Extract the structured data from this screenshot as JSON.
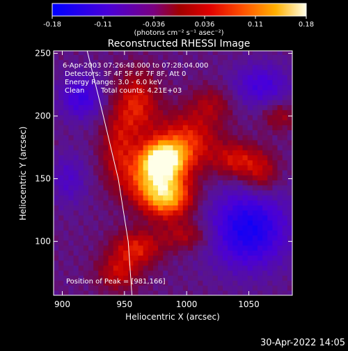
{
  "chart_data": {
    "type": "heatmap",
    "title": "Reconstructed RHESSI Image",
    "xlabel": "Heliocentric X (arcsec)",
    "ylabel": "Heliocentric Y (arcsec)",
    "xlim": [
      893,
      1085
    ],
    "ylim": [
      57,
      252
    ],
    "x_ticks": [
      900,
      950,
      1000,
      1050
    ],
    "y_ticks": [
      100,
      150,
      200,
      250
    ],
    "colorbar": {
      "range": [
        -0.18,
        0.18
      ],
      "ticks": [
        "-0.18",
        "-0.11",
        "-0.036",
        "0.036",
        "0.11",
        "0.18"
      ],
      "units_label": "(photons cm⁻² s⁻¹ asec⁻²)"
    },
    "annotations": {
      "time": "6-Apr-2003 07:26:48.000 to 07:28:04.000",
      "detectors": "Detectors: 3F 4F 5F 6F 7F 8F, Att 0",
      "energy": "Energy Range: 3.0 - 6.0 keV",
      "method": "Clean",
      "counts": "Total counts: 4.21E+03",
      "peak": "Position of Peak = [981,166]"
    },
    "peak": {
      "x": 981,
      "y": 166
    },
    "sources": [
      {
        "x": 981,
        "y": 166,
        "value": 0.18,
        "sx": 12,
        "sy": 10
      },
      {
        "x": 985,
        "y": 135,
        "value": 0.14,
        "sx": 14,
        "sy": 12
      },
      {
        "x": 972,
        "y": 150,
        "value": 0.12,
        "sx": 16,
        "sy": 14
      },
      {
        "x": 1000,
        "y": 180,
        "value": 0.1,
        "sx": 18,
        "sy": 16
      },
      {
        "x": 960,
        "y": 210,
        "value": 0.09,
        "sx": 12,
        "sy": 18
      },
      {
        "x": 945,
        "y": 175,
        "value": 0.07,
        "sx": 10,
        "sy": 20
      },
      {
        "x": 960,
        "y": 95,
        "value": 0.09,
        "sx": 14,
        "sy": 10
      },
      {
        "x": 945,
        "y": 75,
        "value": 0.07,
        "sx": 12,
        "sy": 10
      },
      {
        "x": 1040,
        "y": 165,
        "value": 0.08,
        "sx": 12,
        "sy": 10
      },
      {
        "x": 1060,
        "y": 155,
        "value": 0.07,
        "sx": 10,
        "sy": 12
      },
      {
        "x": 1075,
        "y": 200,
        "value": 0.05,
        "sx": 10,
        "sy": 8
      },
      {
        "x": 1000,
        "y": 105,
        "value": 0.06,
        "sx": 14,
        "sy": 8
      },
      {
        "x": 1020,
        "y": 210,
        "value": 0.05,
        "sx": 12,
        "sy": 10
      }
    ],
    "negatives": [
      {
        "x": 1050,
        "y": 110,
        "value": -0.12,
        "sx": 22,
        "sy": 22
      },
      {
        "x": 915,
        "y": 215,
        "value": -0.08,
        "sx": 12,
        "sy": 12
      },
      {
        "x": 1060,
        "y": 225,
        "value": -0.07,
        "sx": 16,
        "sy": 12
      },
      {
        "x": 905,
        "y": 150,
        "value": -0.05,
        "sx": 10,
        "sy": 14
      }
    ],
    "limb": [
      [
        920,
        252
      ],
      [
        933,
        200
      ],
      [
        945,
        150
      ],
      [
        953,
        100
      ],
      [
        956,
        57
      ]
    ]
  },
  "footer": {
    "date": "30-Apr-2022 14:05"
  }
}
